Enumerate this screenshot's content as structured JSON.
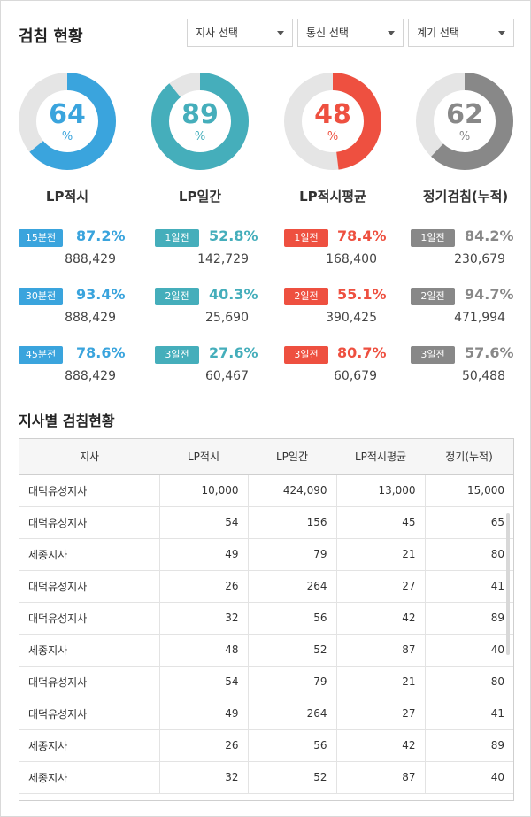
{
  "header": {
    "title": "검침 현황",
    "selects": [
      {
        "label": "지사 선택"
      },
      {
        "label": "통신 선택"
      },
      {
        "label": "계기 선택"
      }
    ]
  },
  "colors": {
    "blue": "#3aa4dd",
    "teal": "#45aebb",
    "red": "#ee5040",
    "gray": "#888888",
    "track": "#e5e5e5"
  },
  "gauges": [
    {
      "value": 64,
      "unit": "%",
      "label": "LP적시",
      "color": "#3aa4dd",
      "stats": [
        {
          "badge": "15분전",
          "percent": "87.2%",
          "count": "888,429"
        },
        {
          "badge": "30분전",
          "percent": "93.4%",
          "count": "888,429"
        },
        {
          "badge": "45분전",
          "percent": "78.6%",
          "count": "888,429"
        }
      ]
    },
    {
      "value": 89,
      "unit": "%",
      "label": "LP일간",
      "color": "#45aebb",
      "stats": [
        {
          "badge": "1일전",
          "percent": "52.8%",
          "count": "142,729"
        },
        {
          "badge": "2일전",
          "percent": "40.3%",
          "count": "25,690"
        },
        {
          "badge": "3일전",
          "percent": "27.6%",
          "count": "60,467"
        }
      ]
    },
    {
      "value": 48,
      "unit": "%",
      "label": "LP적시평균",
      "color": "#ee5040",
      "stats": [
        {
          "badge": "1일전",
          "percent": "78.4%",
          "count": "168,400"
        },
        {
          "badge": "2일전",
          "percent": "55.1%",
          "count": "390,425"
        },
        {
          "badge": "3일전",
          "percent": "80.7%",
          "count": "60,679"
        }
      ]
    },
    {
      "value": 62,
      "unit": "%",
      "label": "정기검침(누적)",
      "color": "#888888",
      "stats": [
        {
          "badge": "1일전",
          "percent": "84.2%",
          "count": "230,679"
        },
        {
          "badge": "2일전",
          "percent": "94.7%",
          "count": "471,994"
        },
        {
          "badge": "3일전",
          "percent": "57.6%",
          "count": "50,488"
        }
      ]
    }
  ],
  "branch_section": {
    "title": "지사별 검침현황",
    "columns": [
      "지사",
      "LP적시",
      "LP일간",
      "LP적시평균",
      "정기(누적)"
    ],
    "rows": [
      [
        "대덕유성지사",
        "10,000",
        "424,090",
        "13,000",
        "15,000"
      ],
      [
        "대덕유성지사",
        "54",
        "156",
        "45",
        "65"
      ],
      [
        "세종지사",
        "49",
        "79",
        "21",
        "80"
      ],
      [
        "대덕유성지사",
        "26",
        "264",
        "27",
        "41"
      ],
      [
        "대덕유성지사",
        "32",
        "56",
        "42",
        "89"
      ],
      [
        "세종지사",
        "48",
        "52",
        "87",
        "40"
      ],
      [
        "대덕유성지사",
        "54",
        "79",
        "21",
        "80"
      ],
      [
        "대덕유성지사",
        "49",
        "264",
        "27",
        "41"
      ],
      [
        "세종지사",
        "26",
        "56",
        "42",
        "89"
      ],
      [
        "세종지사",
        "32",
        "52",
        "87",
        "40"
      ]
    ]
  }
}
